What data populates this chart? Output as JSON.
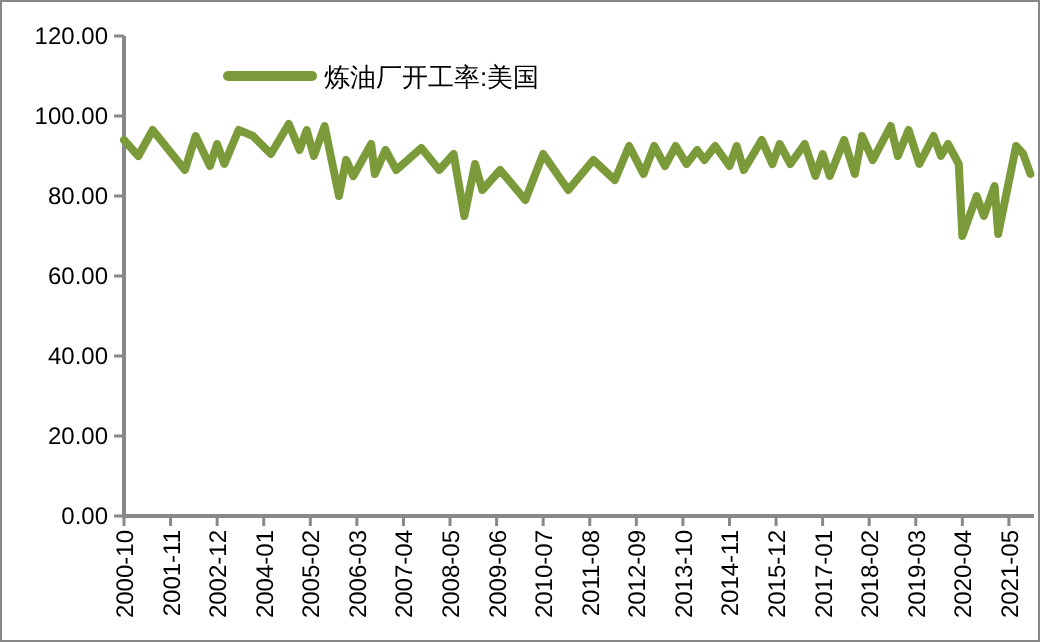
{
  "chart_data": {
    "type": "line",
    "legend": "top left",
    "grid": false,
    "x": [
      "2000-10",
      "2001-02",
      "2001-06",
      "2002-03",
      "2002-06",
      "2002-10",
      "2002-12",
      "2003-02",
      "2003-06",
      "2003-10",
      "2004-03",
      "2004-08",
      "2004-11",
      "2005-01",
      "2005-03",
      "2005-06",
      "2005-10",
      "2005-12",
      "2006-02",
      "2006-07",
      "2006-08",
      "2006-11",
      "2007-02",
      "2007-09",
      "2008-02",
      "2008-06",
      "2008-09",
      "2008-12",
      "2009-02",
      "2009-07",
      "2010-02",
      "2010-07",
      "2011-02",
      "2011-09",
      "2012-03",
      "2012-07",
      "2012-11",
      "2013-02",
      "2013-05",
      "2013-08",
      "2013-11",
      "2014-02",
      "2014-04",
      "2014-07",
      "2014-11",
      "2015-01",
      "2015-03",
      "2015-08",
      "2015-11",
      "2016-01",
      "2016-04",
      "2016-08",
      "2016-11",
      "2017-01",
      "2017-03",
      "2017-07",
      "2017-10",
      "2017-12",
      "2018-03",
      "2018-08",
      "2018-10",
      "2019-01",
      "2019-04",
      "2019-08",
      "2019-10",
      "2019-12",
      "2020-03",
      "2020-04",
      "2020-08",
      "2020-10",
      "2021-01",
      "2021-02",
      "2021-07",
      "2021-09",
      "2021-11"
    ],
    "series": [
      {
        "name": "炼油厂开工率:美国",
        "color": "#7b9a3a",
        "values": [
          94,
          90,
          96.5,
          86.5,
          95,
          87.5,
          93,
          88,
          96.5,
          95,
          90.5,
          98,
          91.5,
          96.5,
          90,
          97.5,
          80,
          89,
          85,
          93,
          85.5,
          91.5,
          86.5,
          92,
          86.5,
          90.5,
          75,
          88,
          81.5,
          86.5,
          79,
          90.5,
          81.5,
          89,
          84,
          92.5,
          85.5,
          92.5,
          87.5,
          92.5,
          88,
          91.5,
          89,
          92.5,
          87.5,
          92.5,
          86.5,
          94,
          88,
          93,
          88,
          93,
          85,
          90.5,
          85,
          94,
          85.5,
          95,
          89,
          97.5,
          90,
          96.5,
          88,
          95,
          90,
          93,
          88,
          70,
          80,
          75,
          82.5,
          70.5,
          92.5,
          90.5,
          85.5
        ]
      }
    ],
    "xlim": [
      "2000-10",
      "2021-12"
    ],
    "xticks": [
      "2000-10",
      "2001-11",
      "2002-12",
      "2004-01",
      "2005-02",
      "2006-03",
      "2007-04",
      "2008-05",
      "2009-06",
      "2010-07",
      "2011-08",
      "2012-09",
      "2013-10",
      "2014-11",
      "2015-12",
      "2017-01",
      "2018-02",
      "2019-03",
      "2020-04",
      "2021-05"
    ],
    "ylim": [
      0,
      120
    ],
    "yticks": [
      {
        "value": 0,
        "label": "0.00"
      },
      {
        "value": 20,
        "label": "20.00"
      },
      {
        "value": 40,
        "label": "40.00"
      },
      {
        "value": 60,
        "label": "60.00"
      },
      {
        "value": 80,
        "label": "80.00"
      },
      {
        "value": 100,
        "label": "100.00"
      },
      {
        "value": 120,
        "label": "120.00"
      }
    ]
  }
}
